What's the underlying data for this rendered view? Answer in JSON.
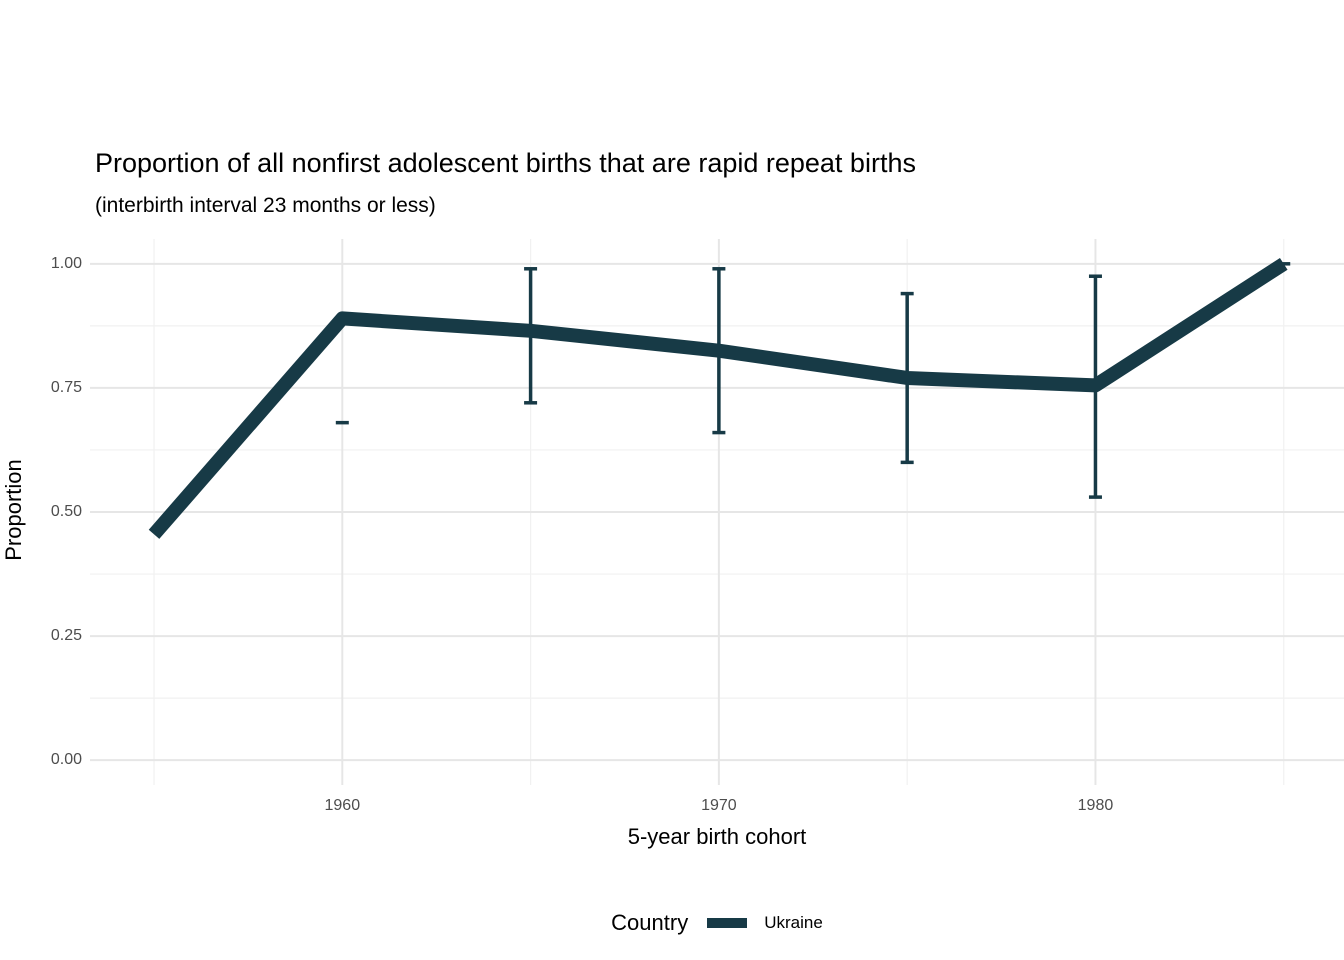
{
  "title": "Proportion of all nonfirst adolescent births that are rapid repeat births",
  "subtitle": "(interbirth interval 23 months or less)",
  "x_axis_title": "5-year birth cohort",
  "y_axis_title": "Proportion",
  "legend": {
    "title": "Country",
    "entries": [
      {
        "label": "Ukraine",
        "swatch": "line"
      }
    ]
  },
  "chart_data": {
    "type": "line",
    "title": "Proportion of all nonfirst adolescent births that are rapid repeat births",
    "subtitle": "(interbirth interval 23 months or less)",
    "xlabel": "5-year birth cohort",
    "ylabel": "Proportion",
    "x": [
      1955,
      1960,
      1965,
      1970,
      1975,
      1980,
      1985
    ],
    "series": [
      {
        "name": "Ukraine",
        "values": [
          0.455,
          0.89,
          0.865,
          0.825,
          0.77,
          0.755,
          1.0
        ],
        "error_bars": [
          {
            "x": 1960,
            "low": 0.68,
            "high": 0.68
          },
          {
            "x": 1965,
            "low": 0.72,
            "high": 0.99
          },
          {
            "x": 1970,
            "low": 0.66,
            "high": 0.99
          },
          {
            "x": 1975,
            "low": 0.6,
            "high": 0.94
          },
          {
            "x": 1980,
            "low": 0.53,
            "high": 0.975
          },
          {
            "x": 1985,
            "low": 1.0,
            "high": 1.0
          }
        ]
      }
    ],
    "x_ticks": {
      "major": [
        {
          "value": 1960,
          "label": "1960"
        },
        {
          "value": 1970,
          "label": "1970"
        },
        {
          "value": 1980,
          "label": "1980"
        }
      ],
      "minor": [
        1955,
        1965,
        1975,
        1985
      ]
    },
    "y_ticks": {
      "major": [
        {
          "value": 0.0,
          "label": "0.00"
        },
        {
          "value": 0.25,
          "label": "0.25"
        },
        {
          "value": 0.5,
          "label": "0.50"
        },
        {
          "value": 0.75,
          "label": "0.75"
        },
        {
          "value": 1.0,
          "label": "1.00"
        }
      ],
      "minor": [
        0.125,
        0.375,
        0.625,
        0.875
      ]
    },
    "xlim": [
      1953.3,
      1986.6
    ],
    "ylim": [
      -0.05,
      1.05
    ],
    "grid": "major+minor",
    "legend_position": "bottom",
    "colors": {
      "line": "#173a46",
      "grid_major": "#e6e6e6",
      "grid_minor": "#f1f1f1",
      "tick_label": "#4d4d4d",
      "text": "#000000",
      "background": "#ffffff"
    },
    "style": {
      "line_width": 14,
      "errorbar_width": 3.5,
      "cap_half_width": 6.5
    }
  }
}
